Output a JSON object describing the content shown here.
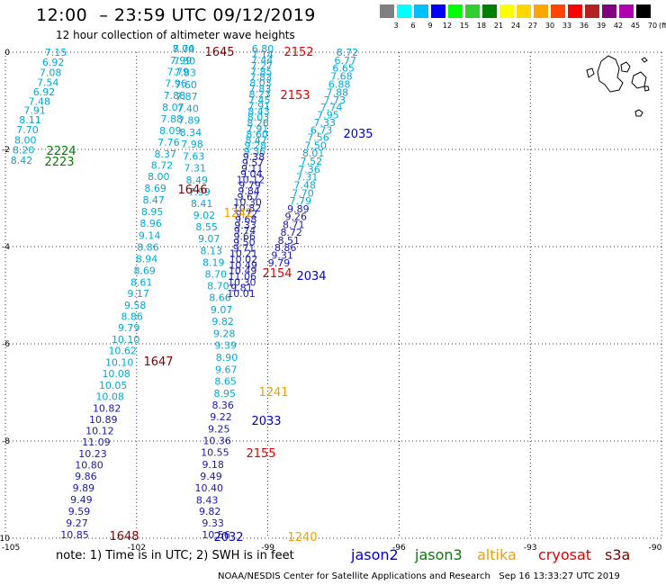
{
  "header": {
    "title": "12:00  – 23:59 UTC 09/12/2019",
    "subtitle": "12 hour collection of altimeter wave heights"
  },
  "legend": {
    "unit": "(ft)",
    "bins": [
      {
        "label": "3",
        "color": "#808080"
      },
      {
        "label": "6",
        "color": "#00ffff"
      },
      {
        "label": "9",
        "color": "#00bfff"
      },
      {
        "label": "12",
        "color": "#0000ff"
      },
      {
        "label": "15",
        "color": "#00ff00"
      },
      {
        "label": "18",
        "color": "#32cd32"
      },
      {
        "label": "21",
        "color": "#008000"
      },
      {
        "label": "24",
        "color": "#ffff00"
      },
      {
        "label": "27",
        "color": "#ffd700"
      },
      {
        "label": "30",
        "color": "#ffa500"
      },
      {
        "label": "33",
        "color": "#ff4500"
      },
      {
        "label": "36",
        "color": "#ff0000"
      },
      {
        "label": "39",
        "color": "#b22222"
      },
      {
        "label": "42",
        "color": "#800080"
      },
      {
        "label": "45",
        "color": "#b000b0"
      },
      {
        "label": "70",
        "color": "#000000"
      }
    ]
  },
  "map": {
    "lon_range": [
      -105,
      -90
    ],
    "lat_range": [
      -10,
      0
    ],
    "x_ticks": [
      "-105",
      "-102",
      "-99",
      "-96",
      "-93",
      "-90"
    ],
    "y_ticks": [
      "0",
      "-2",
      "-4",
      "-6",
      "-8",
      "-10"
    ]
  },
  "colors": {
    "cyan": "#00a8d8",
    "navy": "#1a1aa8",
    "green": "#008000",
    "orange": "#f0a000",
    "red": "#e00000",
    "maroon": "#800000",
    "blue": "#0000cc",
    "black": "#000000"
  },
  "tracks": [
    {
      "name": "track-1645",
      "values": [
        "7.04",
        "8.70",
        "7.99",
        "7.30",
        "7.79",
        "7.83",
        "7.96",
        "7.60",
        "7.88",
        "7.87",
        "8.07",
        "7.40",
        "7.88",
        "7.89",
        "8.09",
        "8.34",
        "7.76",
        "7.98",
        "8.37",
        "7.63",
        "8.72",
        "7.31",
        "8.00",
        "8.49",
        "8.69",
        "7.99",
        "8.47",
        "8.41",
        "8.95",
        "9.02",
        "8.96",
        "8.55",
        "9.14",
        "9.07",
        "8.86",
        "8.13",
        "8.94",
        "8.19",
        "8.69",
        "8.70",
        "8.61",
        "8.70",
        "9.17",
        "8.66",
        "9.58",
        "9.07",
        "8.86",
        "9.82",
        "9.79",
        "9.28",
        "10.10",
        "9.39",
        "10.62",
        "8.90",
        "10.10",
        "9.67",
        "10.08",
        "8.65",
        "10.05",
        "8.95",
        "10.08",
        "8.36",
        "10.82",
        "9.22",
        "10.89",
        "9.25",
        "10.12",
        "10.36",
        "11.09",
        "10.55",
        "10.23",
        "9.18",
        "10.80",
        "9.49",
        "9.86",
        "10.40",
        "9.89",
        "8.43",
        "9.49",
        "9.82",
        "9.59",
        "9.33",
        "9.27",
        "10.56",
        "10.85"
      ]
    },
    {
      "name": "track-2152",
      "values": [
        "6.80",
        "7.14",
        "7.44",
        "7.27",
        "7.85",
        "7.83",
        "8.03",
        "7.83",
        "8.23",
        "7.45",
        "7.91",
        "8.43",
        "8.03",
        "8.26",
        "7.91",
        "8.60",
        "8.47",
        "9.28",
        "9.36",
        "9.38",
        "9.57",
        "9.11",
        "9.04",
        "10.12",
        "9.79",
        "9.84",
        "9.67",
        "10.30",
        "10.82",
        "9.72",
        "9.68",
        "9.33",
        "9.74",
        "9.66",
        "9.50",
        "9.71",
        "10.21",
        "10.02",
        "10.49",
        "10.49",
        "11.06",
        "10.30",
        "9.81",
        "10.01"
      ]
    },
    {
      "name": "track-2035",
      "values": [
        "8.72",
        "6.77",
        "6.65",
        "7.68",
        "6.88",
        "7.88",
        "7.73",
        "7.74",
        "7.95",
        "7.33",
        "6.73",
        "7.56",
        "7.50",
        "8.01",
        "7.52",
        "7.36",
        "7.31",
        "7.48",
        "7.70",
        "7.79",
        "9.89",
        "9.26",
        "8.71",
        "8.72",
        "8.51",
        "8.86",
        "9.31",
        "9.79"
      ]
    },
    {
      "name": "track-2223",
      "values": [
        "7.15",
        "6.92",
        "7.08",
        "7.54",
        "6.92",
        "7.48",
        "7.91",
        "8.11",
        "7.70",
        "8.00",
        "8.20",
        "8.42"
      ]
    }
  ],
  "pass_labels": [
    {
      "text": "1645",
      "color": "maroon"
    },
    {
      "text": "2152",
      "color": "red"
    },
    {
      "text": "2153",
      "color": "red"
    },
    {
      "text": "2035",
      "color": "blue"
    },
    {
      "text": "2224",
      "color": "green"
    },
    {
      "text": "2223",
      "color": "green"
    },
    {
      "text": "1646",
      "color": "maroon"
    },
    {
      "text": "1242",
      "color": "orange"
    },
    {
      "text": "2154",
      "color": "red"
    },
    {
      "text": "2034",
      "color": "blue"
    },
    {
      "text": "1647",
      "color": "maroon"
    },
    {
      "text": "1241",
      "color": "orange"
    },
    {
      "text": "2033",
      "color": "blue"
    },
    {
      "text": "2155",
      "color": "red"
    },
    {
      "text": "1648",
      "color": "maroon"
    },
    {
      "text": "2032",
      "color": "blue"
    },
    {
      "text": "1240",
      "color": "orange"
    }
  ],
  "note": "note:  1) Time is in UTC;  2) SWH is in feet",
  "satellites": [
    {
      "name": "jason2",
      "color": "#0000cc"
    },
    {
      "name": "jason3",
      "color": "#008000"
    },
    {
      "name": "altika",
      "color": "#f0a000"
    },
    {
      "name": "cryosat",
      "color": "#e00000"
    },
    {
      "name": "s3a",
      "color": "#800000"
    }
  ],
  "footer": "NOAA/NESDIS Center for Satellite Applications and Research   Sep 16 13:33:27 UTC 2019"
}
